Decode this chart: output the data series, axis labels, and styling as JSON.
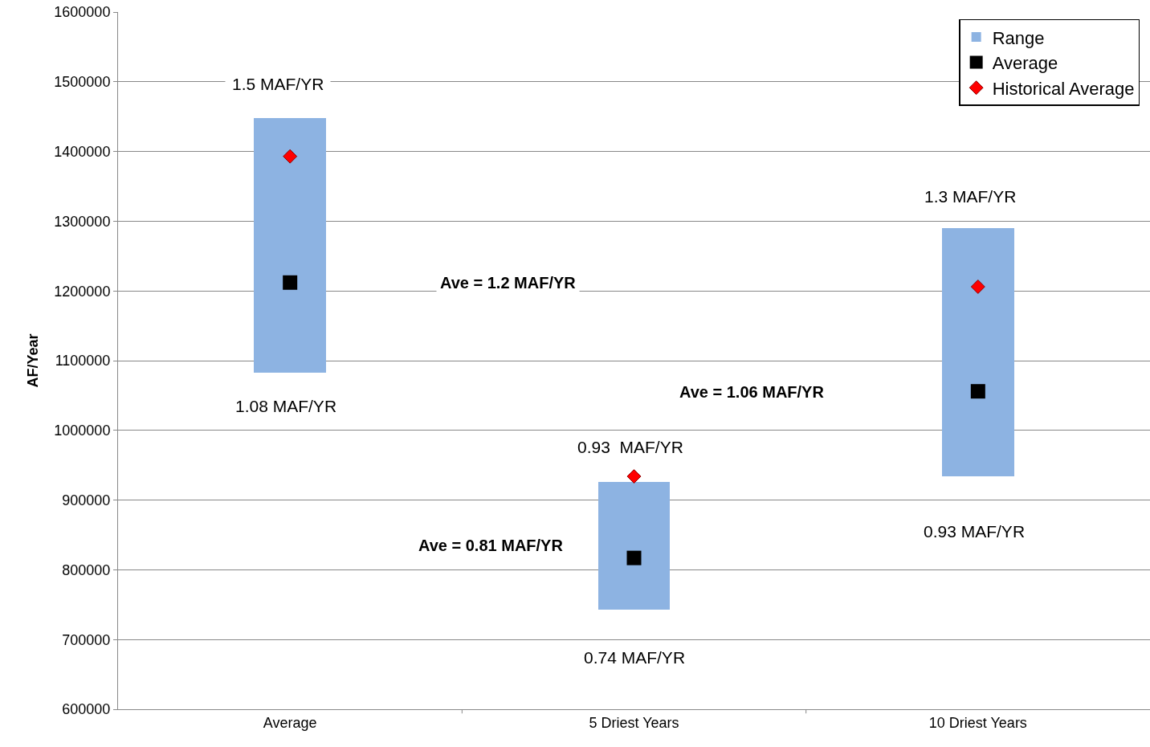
{
  "chart_data": {
    "type": "bar",
    "ylabel": "AF/Year",
    "categories": [
      "Average",
      "5 Driest Years",
      "10 Driest Years"
    ],
    "series": [
      {
        "name": "Range",
        "color": "#8db3e2",
        "base": [
          1083000,
          743000,
          934000
        ],
        "values": [
          365000,
          183000,
          356000
        ]
      },
      {
        "name": "Average",
        "type": "scatter",
        "marker": "square",
        "color": "#000000",
        "values": [
          1212000,
          817000,
          1056000
        ]
      },
      {
        "name": "Historical Average",
        "type": "scatter",
        "marker": "diamond",
        "color": "#ff0000",
        "values": [
          1393000,
          934000,
          1206000
        ]
      }
    ],
    "annotations": [
      {
        "text": "1.5 MAF/YR",
        "x": "Average",
        "y": 1448000
      },
      {
        "text": "1.08 MAF/YR",
        "x": "Average",
        "y": 1083000
      },
      "Ave = 1.2 MAF/YR",
      {
        "text": "0.93  MAF/YR",
        "x": "5 Driest Years",
        "y": 926000
      },
      {
        "text": "0.74 MAF/YR",
        "x": "5 Driest Years",
        "y": 743000
      },
      "Ave = 0.81 MAF/YR",
      {
        "text": "1.3 MAF/YR",
        "x": "10 Driest Years",
        "y": 1290000
      },
      {
        "text": "0.93 MAF/YR",
        "x": "10 Driest Years",
        "y": 934000
      },
      "Ave = 1.06 MAF/YR"
    ],
    "ylim": [
      600000,
      1600000
    ],
    "yticks": [
      600000,
      700000,
      800000,
      900000,
      1000000,
      1100000,
      1200000,
      1300000,
      1400000,
      1500000,
      1600000
    ],
    "grid": "y",
    "legend": "top right"
  }
}
